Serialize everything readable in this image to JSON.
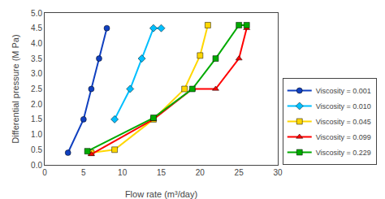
{
  "chart_data": {
    "type": "line",
    "xlabel": "Flow rate (m³/day)",
    "ylabel": "Differential pressure (M Pa)",
    "series": [
      {
        "name": "Viscosity = 0.001",
        "color": "#1040C0",
        "marker": "circle",
        "x": [
          3,
          5,
          6,
          7,
          8
        ],
        "values": [
          0.4,
          1.5,
          2.5,
          3.5,
          4.5
        ]
      },
      {
        "name": "Viscosity = 0.010",
        "color": "#00BFFF",
        "marker": "diamond",
        "x": [
          9,
          11,
          12.5,
          14,
          15
        ],
        "values": [
          1.5,
          2.5,
          3.5,
          4.5,
          4.5
        ]
      },
      {
        "name": "Viscosity = 0.045",
        "color": "#FFD700",
        "marker": "square",
        "x": [
          6,
          9,
          14,
          18,
          20,
          21
        ],
        "values": [
          0.4,
          0.5,
          1.5,
          2.5,
          3.6,
          4.6
        ]
      },
      {
        "name": "Viscosity = 0.099",
        "color": "#FF0000",
        "marker": "triangle-up",
        "x": [
          6,
          14,
          19,
          22,
          25,
          26
        ],
        "values": [
          0.35,
          1.5,
          2.5,
          2.5,
          3.5,
          4.5
        ]
      },
      {
        "name": "Viscosity = 0.229",
        "color": "#00AA00",
        "marker": "square",
        "x": [
          5.5,
          14,
          19,
          22,
          25,
          26
        ],
        "values": [
          0.45,
          1.55,
          2.5,
          3.5,
          4.6,
          4.6
        ]
      }
    ],
    "xlim": [
      0,
      30
    ],
    "ylim": [
      0,
      5
    ],
    "xticks": [
      0,
      5,
      10,
      15,
      20,
      25,
      30
    ],
    "yticks": [
      {
        "value": 0,
        "label": "0.0"
      },
      0.5,
      {
        "value": 1,
        "label": "1.0"
      },
      1.5,
      {
        "value": 2,
        "label": "2.0"
      },
      2.5,
      {
        "value": 3,
        "label": "3.0"
      },
      3.5,
      {
        "value": 4,
        "label": "4.0"
      },
      4.5,
      {
        "value": 5,
        "label": "5.0"
      }
    ],
    "legend": "lower right",
    "grid": false
  }
}
